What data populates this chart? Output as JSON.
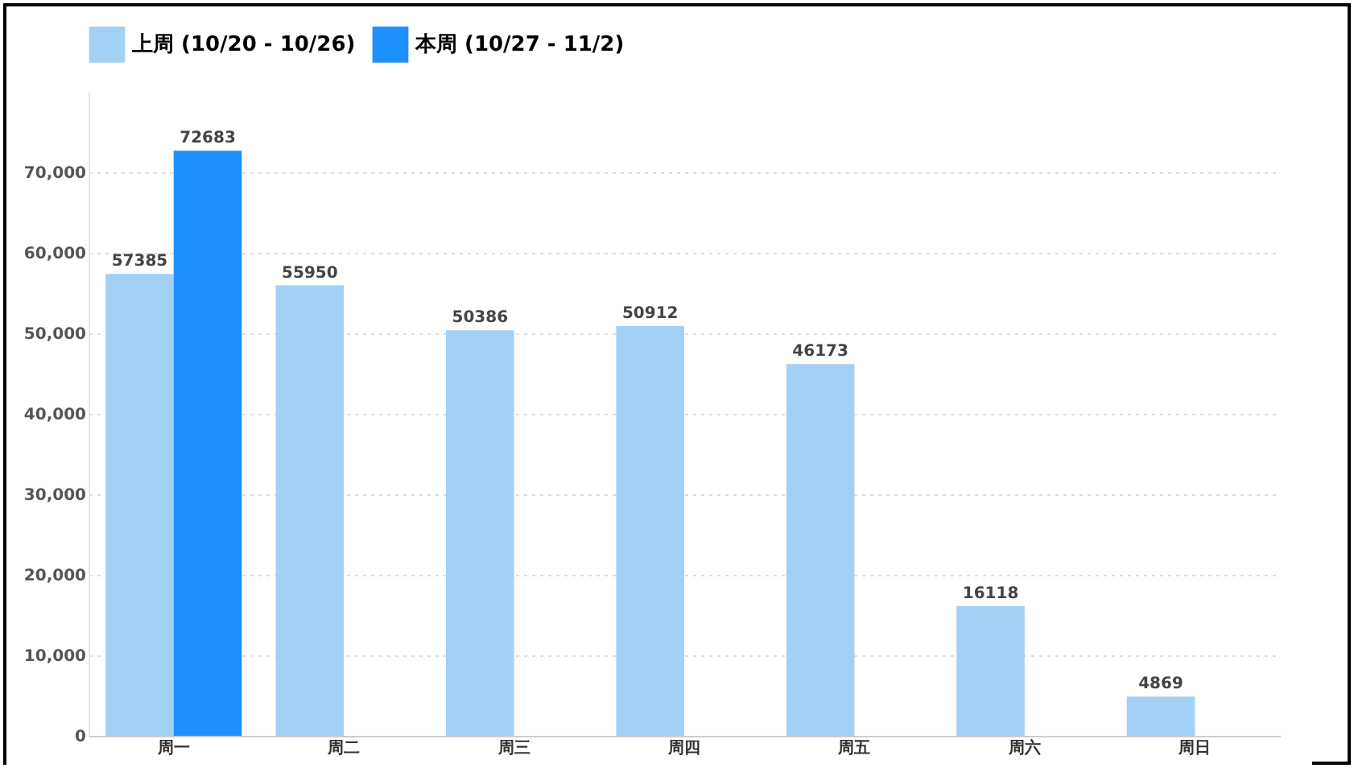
{
  "chart_data": {
    "type": "bar",
    "categories": [
      "周一",
      "周二",
      "周三",
      "周四",
      "周五",
      "周六",
      "周日"
    ],
    "series": [
      {
        "name": "上周 (10/20 - 10/26)",
        "color": "#a3d0f5",
        "values": [
          57385,
          55950,
          50386,
          50912,
          46173,
          16118,
          4869
        ]
      },
      {
        "name": "本周 (10/27 - 11/2)",
        "color": "#1e90ff",
        "values": [
          72683,
          null,
          null,
          null,
          null,
          null,
          null
        ]
      }
    ],
    "ylim": [
      0,
      80000
    ],
    "yticks": [
      0,
      {
        "value": 10000,
        "label": "10,000"
      },
      {
        "value": 20000,
        "label": "20,000"
      },
      {
        "value": 30000,
        "label": "30,000"
      },
      {
        "value": 40000,
        "label": "40,000"
      },
      {
        "value": 50000,
        "label": "50,000"
      },
      {
        "value": 60000,
        "label": "60,000"
      },
      {
        "value": 70000,
        "label": "70,000"
      }
    ],
    "grid": "y",
    "legend": "top",
    "data_labels": true
  }
}
